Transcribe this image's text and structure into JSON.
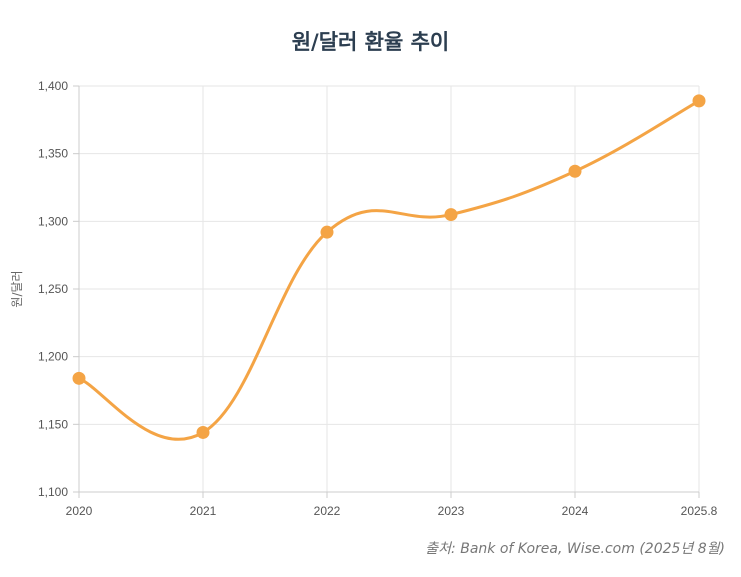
{
  "chart_data": {
    "type": "line",
    "title": "원/달러 환율 추이",
    "ylabel": "원/달러",
    "xlabel": "",
    "categories": [
      "2020",
      "2021",
      "2022",
      "2023",
      "2024",
      "2025.8"
    ],
    "series": [
      {
        "values": [
          1184,
          1144,
          1292,
          1305,
          1337,
          1389
        ],
        "color": "#f4a445"
      }
    ],
    "ylim": [
      1100,
      1400
    ],
    "yticks": [
      "1,100",
      "1,150",
      "1,200",
      "1,250",
      "1,300",
      "1,350",
      "1,400"
    ],
    "grid": true,
    "smooth": true,
    "source": "출처: Bank of Korea, Wise.com (2025년 8월)"
  }
}
